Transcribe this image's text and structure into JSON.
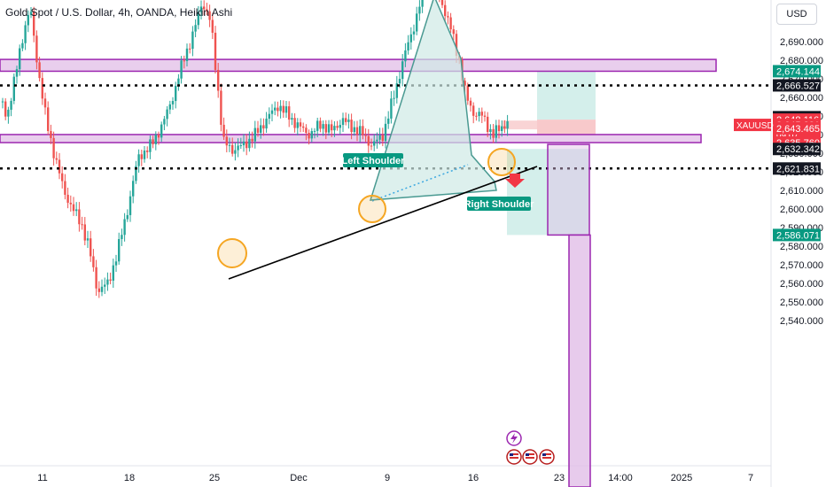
{
  "header": {
    "title": "Gold Spot / U.S. Dollar, 4h, OANDA, Heikin Ashi",
    "currency_button": "USD"
  },
  "colors": {
    "up": "#26a69a",
    "down": "#ef5350",
    "zone_border": "#9c27b0",
    "zone_fill": "#e1bee7",
    "teal_label": "#089981",
    "red_label": "#f23645",
    "dark_label": "#131722",
    "trendline": "#000000",
    "pattern": "#4a9a92",
    "circle": "#f5a623"
  },
  "chart_data": {
    "type": "candlestick",
    "chart_style": "Heikin Ashi",
    "symbol_badge": "XAUUSD",
    "ylim": [
      2538,
      2720
    ],
    "y_ticks": [
      2540,
      2550,
      2560,
      2570,
      2580,
      2590,
      2600,
      2610,
      2620,
      2630,
      2640,
      2650,
      2660,
      2670,
      2680,
      2690
    ],
    "y_tick_labels": [
      "2,540.000",
      "2,550.000",
      "2,560.000",
      "2,570.000",
      "2,580.000",
      "2,590.000",
      "2,600.000",
      "2,610.000",
      "2,620.000",
      "2,630.000",
      "2,640.000",
      "2,650.000",
      "2,660.000",
      "2,670.000",
      "2,680.000",
      "2,690.000"
    ],
    "x_ticks": [
      "11",
      "18",
      "25",
      "Dec",
      "9",
      "16",
      "23",
      "14:00",
      "2025",
      "7"
    ],
    "price_labels": [
      {
        "value": 2674.144,
        "text": "2,674.144",
        "style": "teal"
      },
      {
        "value": 2666.527,
        "text": "2,666.527",
        "style": "dark"
      },
      {
        "value": 2649.431,
        "text": "2,649.431",
        "style": "dark"
      },
      {
        "value": 2648.116,
        "text": "2,648.116",
        "style": "red"
      },
      {
        "value": 2645.281,
        "text": "2,645.281",
        "style": "red",
        "sub": "09:07"
      },
      {
        "value": 2643.465,
        "text": "2,643.465",
        "style": "red"
      },
      {
        "value": 2635.76,
        "text": "2,635.760",
        "style": "red"
      },
      {
        "value": 2632.342,
        "text": "2,632.342",
        "style": "dark"
      },
      {
        "value": 2621.831,
        "text": "2,621.831",
        "style": "dark"
      },
      {
        "value": 2586.071,
        "text": "2,586.071",
        "style": "teal"
      }
    ],
    "horizontal_levels": [
      2666.527,
      2621.831
    ],
    "zones": [
      [
        2674.144,
        2680.5
      ],
      [
        2635.76,
        2640.1
      ]
    ],
    "annotations": [
      "Left Shoulder",
      "Right Shoulder"
    ]
  }
}
